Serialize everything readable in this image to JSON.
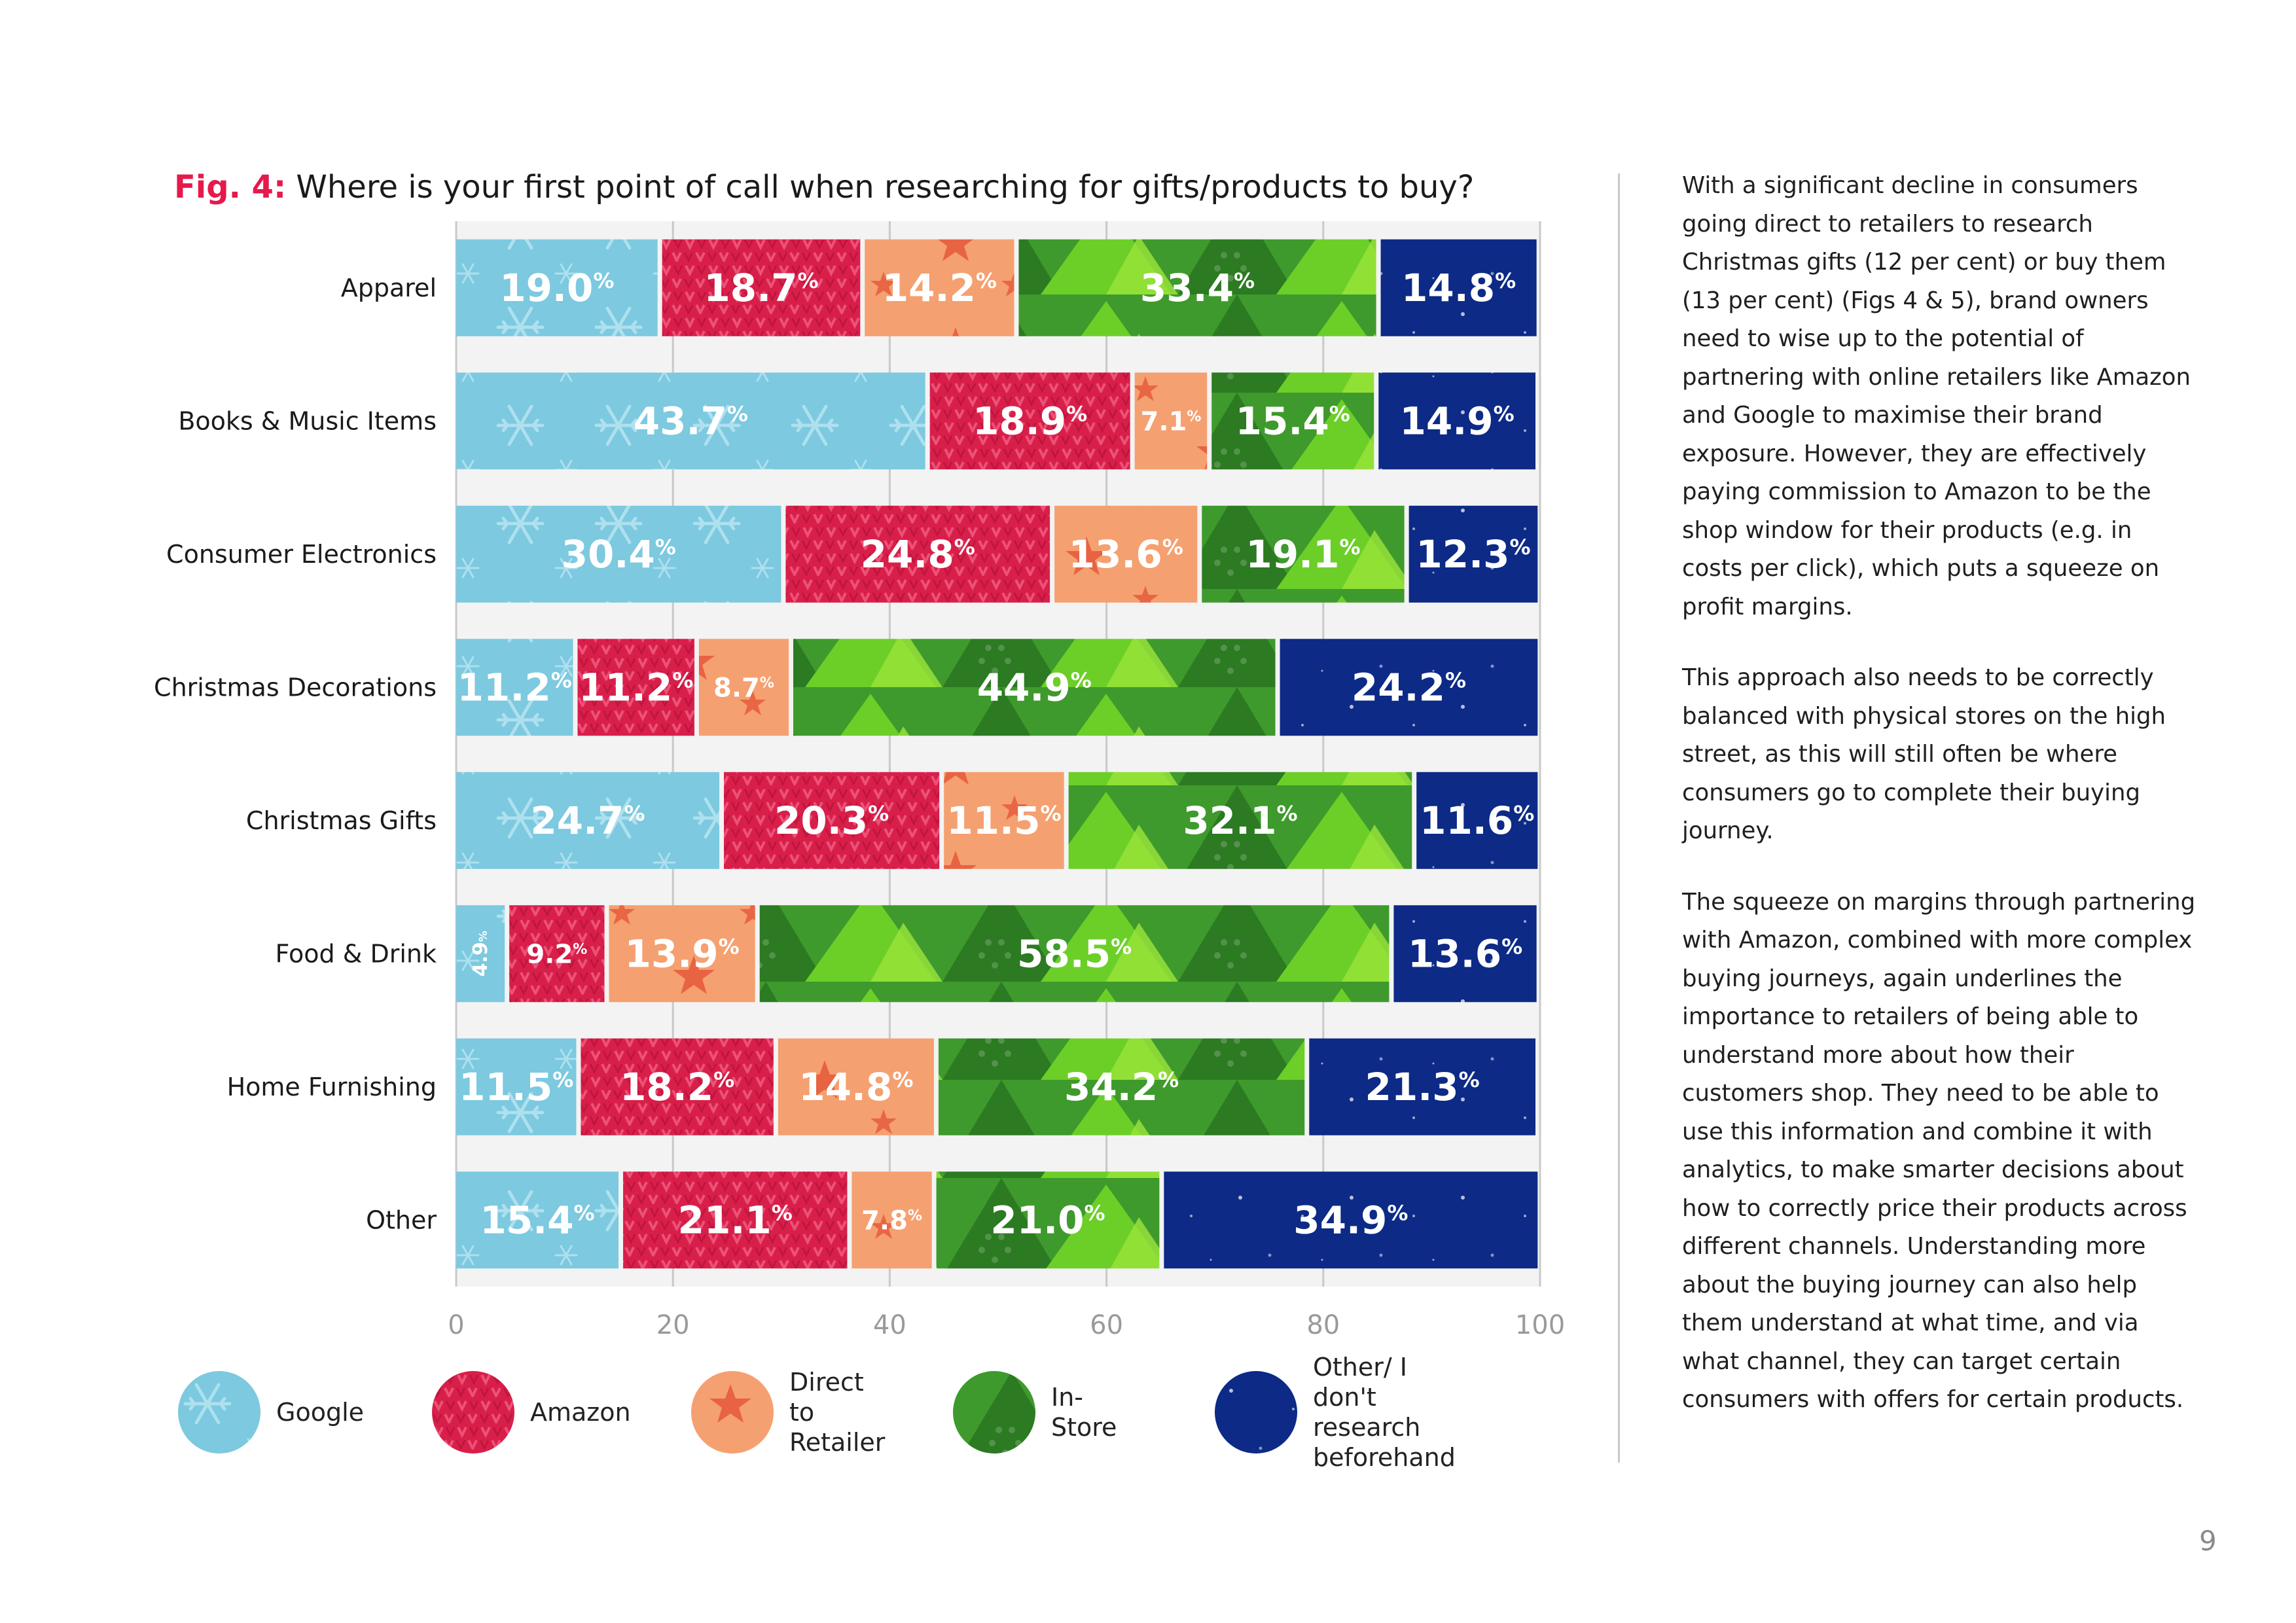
{
  "figure": {
    "label": "Fig. 4:",
    "title": "Where is your first point of call when researching for gifts/products to buy?"
  },
  "chart_data": {
    "type": "bar",
    "orientation": "horizontal",
    "stacked": true,
    "categories": [
      "Apparel",
      "Books & Music Items",
      "Consumer Electronics",
      "Christmas Decorations",
      "Christmas Gifts",
      "Food & Drink",
      "Home Furnishing",
      "Other"
    ],
    "series": [
      {
        "name": "Google",
        "color": "#7cc9e0",
        "values": [
          19.0,
          43.7,
          30.4,
          11.2,
          24.7,
          4.9,
          11.5,
          15.4
        ]
      },
      {
        "name": "Amazon",
        "color": "#d81f4a",
        "values": [
          18.7,
          18.9,
          24.8,
          11.2,
          20.3,
          9.2,
          18.2,
          21.1
        ]
      },
      {
        "name": "Direct to Retailer",
        "color": "#f5a070",
        "values": [
          14.2,
          7.1,
          13.6,
          8.7,
          11.5,
          13.9,
          14.8,
          7.8
        ]
      },
      {
        "name": "In-Store",
        "color": "#3e9a2c",
        "values": [
          33.4,
          15.4,
          19.1,
          44.9,
          32.1,
          58.5,
          34.2,
          21.0
        ]
      },
      {
        "name": "Other/ I don't research beforehand",
        "color": "#0c2a86",
        "values": [
          14.8,
          14.9,
          12.3,
          24.2,
          11.6,
          13.6,
          21.3,
          34.9
        ]
      }
    ],
    "value_suffix": "%",
    "xlim": [
      0,
      100
    ],
    "xticks": [
      0,
      20,
      40,
      60,
      80,
      100
    ],
    "grid": true,
    "legend_position": "bottom"
  },
  "legend": [
    {
      "label": "Google",
      "icon": "snowflake-pattern"
    },
    {
      "label": "Amazon",
      "icon": "knit-pattern"
    },
    {
      "label": "Direct to\nRetailer",
      "icon": "star-pattern"
    },
    {
      "label": "In-Store",
      "icon": "tree-pattern"
    },
    {
      "label": "Other/ I don't\nresearch beforehand",
      "icon": "night-sky-pattern"
    }
  ],
  "body": {
    "paragraphs": [
      "With a significant decline in consumers going direct to retailers to research Christmas gifts (12 per cent) or buy them (13 per cent) (Figs 4 & 5), brand owners need to wise up to the potential of partnering with online retailers like Amazon and Google to maximise their brand exposure. However, they are effectively paying commission to Amazon to be the shop window for their products (e.g. in costs per click), which puts a squeeze on profit margins.",
      "This approach also needs to be correctly balanced with physical stores on the high street, as this will still often be where consumers go to complete their buying journey.",
      "The squeeze on margins through partnering with Amazon, combined with more complex buying journeys, again underlines the importance to retailers of being able to understand more about how their customers shop. They need to be able to use this information and combine it with analytics, to make smarter decisions about how to correctly price their products across different channels. Understanding more about the buying journey can also help them understand at what time, and via what channel, they can target certain consumers with offers for certain products."
    ]
  },
  "page_number": "9"
}
